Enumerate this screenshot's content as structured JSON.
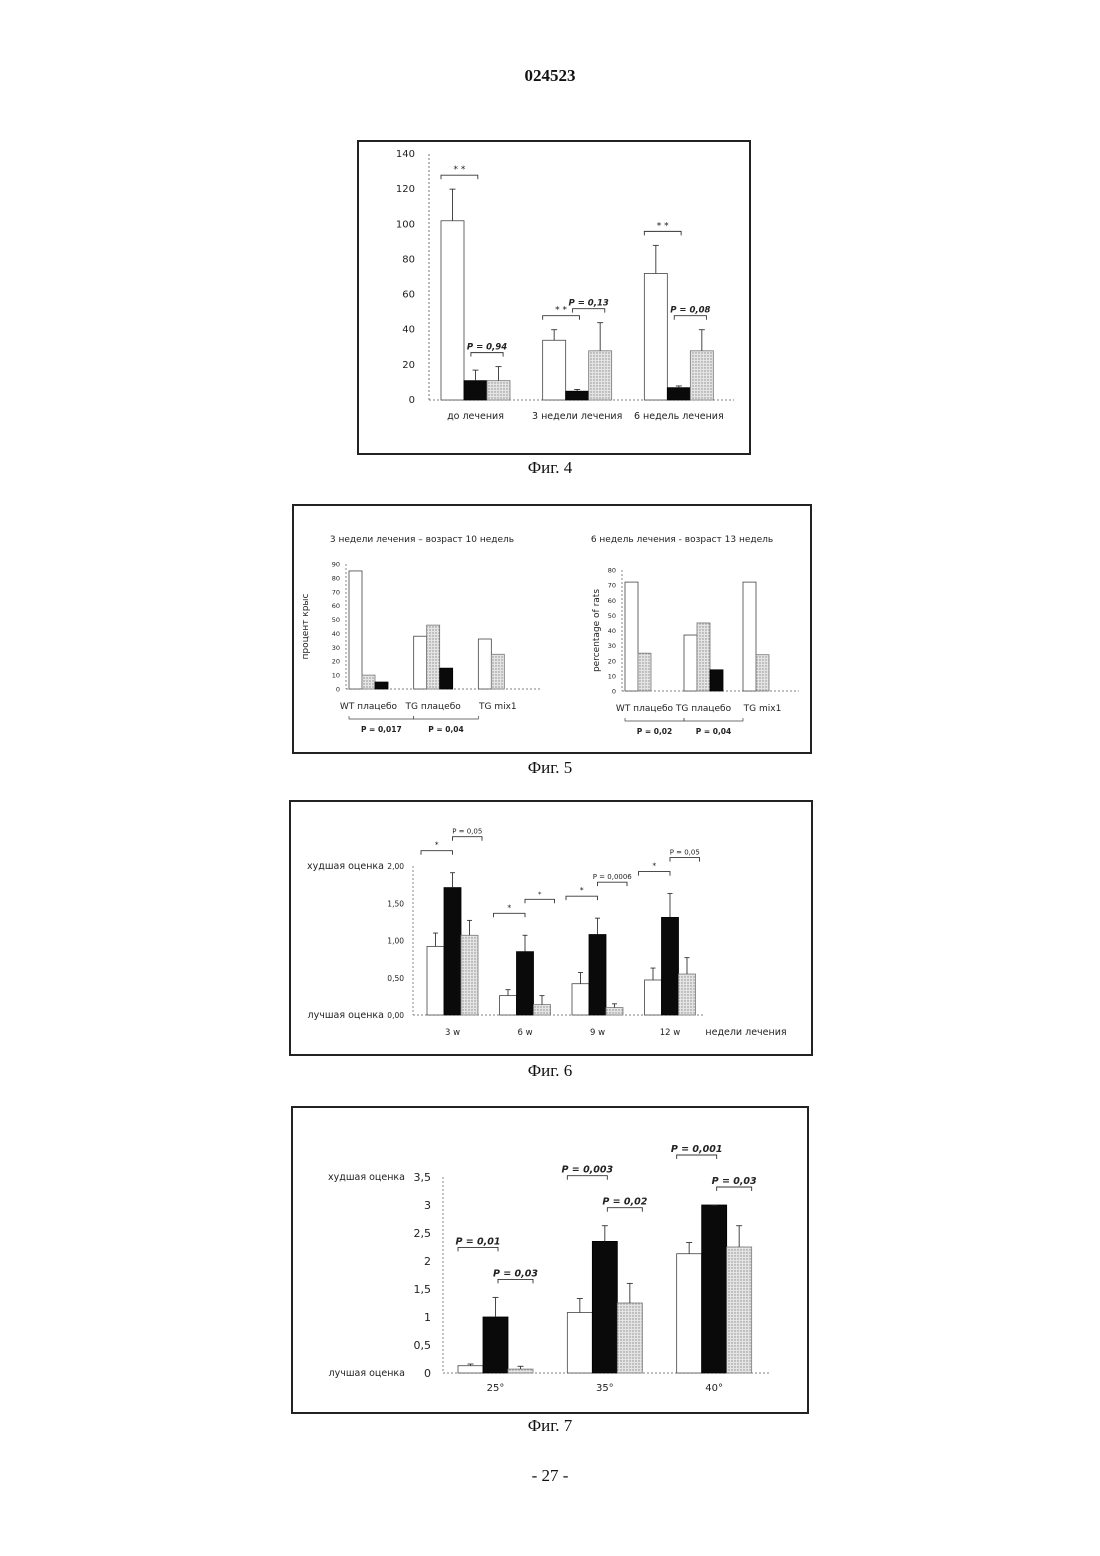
{
  "document": {
    "number": "024523",
    "page_number": "- 27 -"
  },
  "colors": {
    "white_bar": "#ffffff",
    "black_bar": "#0a0a0a",
    "dotted_bar": "#cfcfcf",
    "frame": "#222222"
  },
  "chart_data": [
    {
      "figure": "Фиг. 4",
      "type": "bar",
      "ylim": [
        0,
        140
      ],
      "yticks": [
        "0",
        "20",
        "40",
        "60",
        "80",
        "100",
        "120",
        "140"
      ],
      "ylabel": "",
      "categories": [
        "до лечения",
        "3 недели лечения",
        "6 недель лечения"
      ],
      "series": [
        {
          "style": "white",
          "values": [
            102,
            34,
            72
          ],
          "errors": [
            18,
            6,
            16
          ]
        },
        {
          "style": "black",
          "values": [
            11,
            5,
            7
          ],
          "errors": [
            6,
            1,
            1
          ]
        },
        {
          "style": "dotted",
          "values": [
            11,
            28,
            28
          ],
          "errors": [
            8,
            16,
            12
          ]
        }
      ],
      "annotations": [
        "* *",
        "P = 0,94",
        "* *",
        "P = 0,13",
        "* *",
        "P = 0,08"
      ]
    },
    {
      "figure": "Фиг. 5",
      "type": "bar",
      "panels": [
        {
          "title": "3 недели лечения – возраст 10 недель",
          "ylabel": "процент крыс",
          "ylim": [
            0,
            90
          ],
          "yticks": [
            "0",
            "10",
            "20",
            "30",
            "40",
            "50",
            "60",
            "70",
            "80",
            "90"
          ],
          "groups": [
            "WT плацебо",
            "TG плацебо",
            "TG mix1"
          ],
          "series": [
            {
              "style": "white",
              "values": [
                85,
                38,
                36
              ]
            },
            {
              "style": "dotted",
              "values": [
                10,
                46,
                25
              ]
            },
            {
              "style": "black",
              "values": [
                5,
                15,
                0
              ]
            }
          ],
          "pvalues": [
            "P = 0,017",
            "P = 0,04"
          ]
        },
        {
          "title": "6 недель лечения - возраст 13 недель",
          "ylabel": "percentage of rats",
          "ylim": [
            0,
            80
          ],
          "yticks": [
            "0",
            "10",
            "20",
            "30",
            "40",
            "50",
            "60",
            "70",
            "80"
          ],
          "groups": [
            "WT плацебо",
            "TG плацебо",
            "TG mix1"
          ],
          "series": [
            {
              "style": "white",
              "values": [
                72,
                37,
                72
              ]
            },
            {
              "style": "dotted",
              "values": [
                25,
                45,
                24
              ]
            },
            {
              "style": "black",
              "values": [
                0,
                14,
                0
              ]
            }
          ],
          "pvalues": [
            "P = 0,02",
            "P = 0,04"
          ]
        }
      ]
    },
    {
      "figure": "Фиг. 6",
      "type": "bar",
      "ylim": [
        0,
        2
      ],
      "yticks": [
        "0,00",
        "0,50",
        "1,00",
        "1,50",
        "2,00"
      ],
      "ytop_label": "худшая оценка",
      "ybottom_label": "лучшая оценка",
      "xlabel": "недели лечения",
      "categories": [
        "3 w",
        "6 w",
        "9 w",
        "12 w"
      ],
      "series": [
        {
          "style": "white",
          "values": [
            0.92,
            0.26,
            0.42,
            0.47
          ],
          "errors": [
            0.18,
            0.08,
            0.15,
            0.16
          ]
        },
        {
          "style": "black",
          "values": [
            1.71,
            0.85,
            1.08,
            1.31
          ],
          "errors": [
            0.2,
            0.22,
            0.22,
            0.32
          ]
        },
        {
          "style": "dotted",
          "values": [
            1.07,
            0.14,
            0.1,
            0.55
          ],
          "errors": [
            0.2,
            0.12,
            0.05,
            0.22
          ]
        }
      ],
      "annotations": [
        "*",
        "P = 0,05",
        "*",
        "*",
        "*",
        "P = 0,0006",
        "*",
        "P = 0,05"
      ]
    },
    {
      "figure": "Фиг. 7",
      "type": "bar",
      "ylim": [
        0,
        3.5
      ],
      "yticks": [
        "0",
        "0,5",
        "1",
        "1,5",
        "2",
        "2,5",
        "3",
        "3,5"
      ],
      "ytop_label": "худшая оценка",
      "ybottom_label": "лучшая оценка",
      "categories": [
        "25°",
        "35°",
        "40°"
      ],
      "series": [
        {
          "style": "white",
          "values": [
            0.13,
            1.08,
            2.13
          ],
          "errors": [
            0.03,
            0.25,
            0.2
          ]
        },
        {
          "style": "black",
          "values": [
            1.0,
            2.35,
            3.0
          ],
          "errors": [
            0.35,
            0.28,
            0.0
          ]
        },
        {
          "style": "dotted",
          "values": [
            0.07,
            1.25,
            2.25
          ],
          "errors": [
            0.05,
            0.35,
            0.38
          ]
        }
      ],
      "annotations": [
        "P = 0,01",
        "P = 0,03",
        "P = 0,003",
        "P = 0,02",
        "P = 0,001",
        "P = 0,03"
      ]
    }
  ]
}
